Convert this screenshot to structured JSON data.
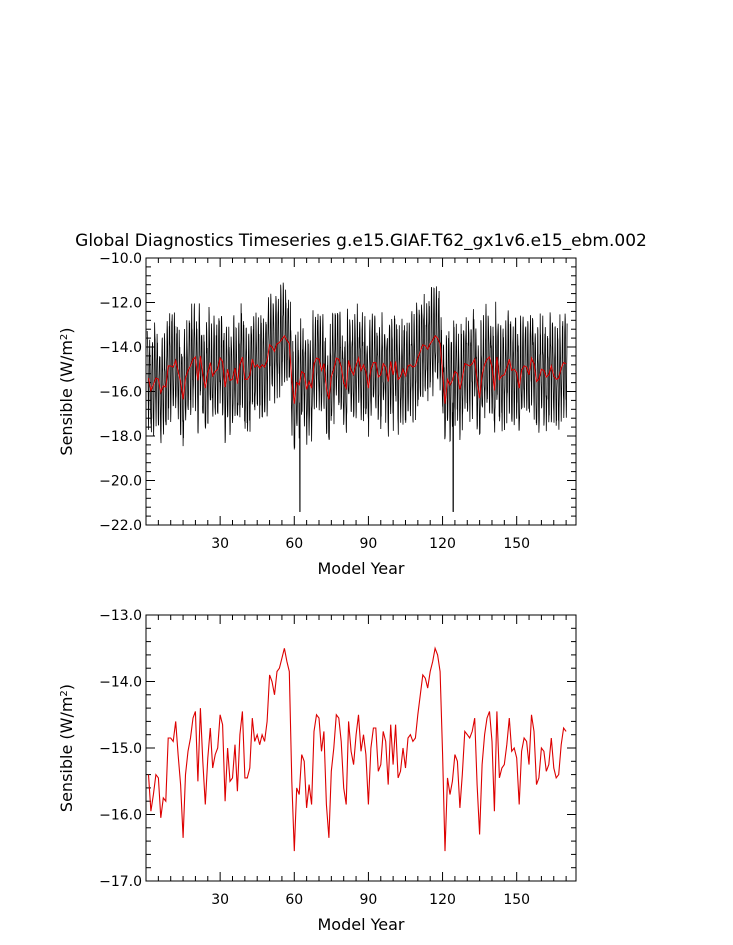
{
  "title": "Global Diagnostics Timeseries g.e15.GIAF.T62_gx1v6.e15_ebm.002",
  "colors": {
    "monthly": "#000000",
    "annual": "#dd0000",
    "frame": "#000000"
  },
  "chart_data": [
    {
      "type": "line",
      "xlabel": "Model Year",
      "ylabel": "Sensible (W/m2)",
      "ylabel_base": "Sensible (W/m",
      "ylabel_sup": "2",
      "ylabel_close": ")",
      "xlim": [
        0,
        174
      ],
      "ylim": [
        -22,
        -10
      ],
      "xticks": [
        30,
        60,
        90,
        120,
        150
      ],
      "xtick_labels": [
        "30",
        "60",
        "90",
        "120",
        "150"
      ],
      "yticks": [
        -22,
        -20,
        -18,
        -16,
        -14,
        -12,
        -10
      ],
      "ytick_labels": [
        "−22.0",
        "−20.0",
        "−18.0",
        "−16.0",
        "−14.0",
        "−12.0",
        "−10.0"
      ],
      "series": [
        {
          "key": "monthly",
          "resolution": "monthly",
          "seasonal_amplitude": 2.0,
          "noise": 0.6,
          "extremes": [
            {
              "year": 62.3,
              "value": -21.4
            },
            {
              "year": 124.3,
              "value": -21.4
            }
          ]
        },
        {
          "key": "annual",
          "resolution": "annual"
        }
      ]
    },
    {
      "type": "line",
      "xlabel": "Model Year",
      "ylabel": "Sensible (W/m2)",
      "ylabel_base": "Sensible (W/m",
      "ylabel_sup": "2",
      "ylabel_close": ")",
      "xlim": [
        0,
        174
      ],
      "ylim": [
        -17,
        -13
      ],
      "xticks": [
        30,
        60,
        90,
        120,
        150
      ],
      "xtick_labels": [
        "30",
        "60",
        "90",
        "120",
        "150"
      ],
      "yticks": [
        -17,
        -16,
        -15,
        -14,
        -13
      ],
      "ytick_labels": [
        "−17.0",
        "−16.0",
        "−15.0",
        "−14.0",
        "−13.0"
      ],
      "series": [
        {
          "key": "annual",
          "resolution": "annual"
        }
      ]
    }
  ],
  "annual_series": {
    "x_start": 1,
    "values": [
      -15.4,
      -15.95,
      -15.7,
      -15.4,
      -15.45,
      -16.05,
      -15.75,
      -15.8,
      -14.85,
      -14.85,
      -14.9,
      -14.6,
      -15.1,
      -15.55,
      -16.35,
      -15.4,
      -15.05,
      -14.85,
      -14.55,
      -14.45,
      -15.5,
      -14.4,
      -15.2,
      -15.85,
      -15.15,
      -14.7,
      -15.3,
      -15.1,
      -15.0,
      -14.5,
      -14.65,
      -15.8,
      -15.0,
      -15.5,
      -15.45,
      -14.95,
      -15.65,
      -14.8,
      -14.45,
      -15.45,
      -15.45,
      -15.3,
      -14.55,
      -14.9,
      -14.8,
      -14.95,
      -14.8,
      -14.9,
      -14.6,
      -13.9,
      -14.0,
      -14.2,
      -13.85,
      -13.8,
      -13.65,
      -13.5,
      -13.7,
      -13.85,
      -15.5,
      -16.55,
      -15.6,
      -15.7,
      -15.1,
      -15.2,
      -15.9,
      -15.55,
      -15.85,
      -14.75,
      -14.5,
      -14.55,
      -15.05,
      -14.75,
      -15.85,
      -16.35,
      -15.35,
      -15.0,
      -14.5,
      -14.55,
      -14.9,
      -15.6,
      -15.85,
      -14.6,
      -15.05,
      -15.25,
      -14.8,
      -14.5,
      -15.05,
      -14.8,
      -15.1,
      -15.85,
      -15.0,
      -14.7,
      -14.7,
      -15.35,
      -15.25,
      -14.75,
      -14.9,
      -15.55,
      -14.65,
      -15.25,
      -14.65,
      -15.45,
      -15.35,
      -15.0,
      -15.3,
      -14.85,
      -14.8,
      -14.9,
      -14.85,
      -14.5,
      -14.2,
      -13.9,
      -13.95,
      -14.1,
      -13.85,
      -13.7,
      -13.5,
      -13.6,
      -13.85,
      -15.1,
      -16.55,
      -15.45,
      -15.7,
      -15.5,
      -15.1,
      -15.2,
      -15.9,
      -15.4,
      -14.75,
      -14.8,
      -14.85,
      -14.75,
      -14.55,
      -15.55,
      -16.3,
      -15.25,
      -14.8,
      -14.55,
      -14.45,
      -14.9,
      -15.95,
      -14.45,
      -15.45,
      -15.3,
      -15.25,
      -14.95,
      -14.55,
      -15.05,
      -15.0,
      -15.15,
      -15.85,
      -15.05,
      -14.85,
      -14.9,
      -15.25,
      -14.5,
      -14.75,
      -15.55,
      -15.45,
      -15.0,
      -15.05,
      -15.35,
      -15.25,
      -14.85,
      -15.3,
      -15.45,
      -15.4,
      -14.95,
      -14.7,
      -14.75
    ]
  }
}
